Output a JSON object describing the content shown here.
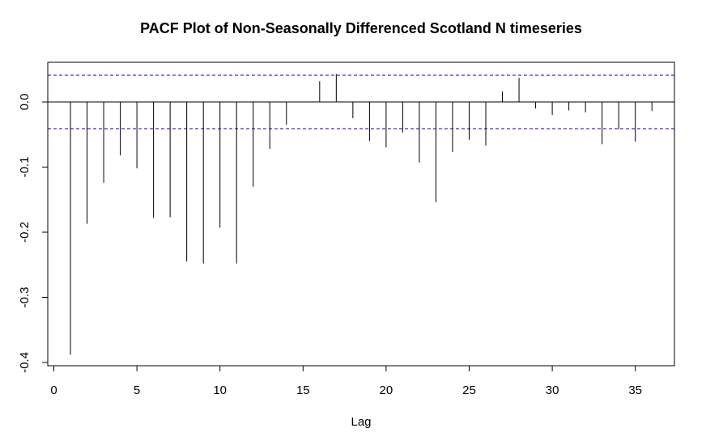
{
  "chart_data": {
    "type": "bar",
    "title": "PACF Plot of Non-Seasonally Differenced Scotland N timeseries",
    "xlabel": "Lag",
    "ylabel": "",
    "xlim": [
      0,
      37
    ],
    "ylim": [
      -0.4,
      0.05
    ],
    "x_ticks": [
      0,
      5,
      10,
      15,
      20,
      25,
      30,
      35
    ],
    "y_ticks": [
      0.0,
      -0.1,
      -0.2,
      -0.3,
      -0.4
    ],
    "y_tick_labels": [
      "0.0",
      "-0.1",
      "-0.2",
      "-0.3",
      "-0.4"
    ],
    "confidence_bound": 0.041,
    "bound_color": "#0000cd",
    "series": [
      {
        "x": [
          1,
          2,
          3,
          4,
          5,
          6,
          7,
          8,
          9,
          10,
          11,
          12,
          13,
          14,
          15,
          16,
          17,
          18,
          19,
          20,
          21,
          22,
          23,
          24,
          25,
          26,
          27,
          28,
          29,
          30,
          31,
          32,
          33,
          34,
          35,
          36
        ],
        "values": [
          -0.388,
          -0.187,
          -0.124,
          -0.082,
          -0.102,
          -0.178,
          -0.177,
          -0.245,
          -0.248,
          -0.193,
          -0.248,
          -0.13,
          -0.072,
          -0.035,
          0.0,
          0.032,
          0.043,
          -0.025,
          -0.06,
          -0.07,
          -0.047,
          -0.093,
          -0.154,
          -0.077,
          -0.058,
          -0.067,
          0.016,
          0.037,
          -0.01,
          -0.02,
          -0.013,
          -0.016,
          -0.065,
          -0.042,
          -0.061,
          -0.014
        ]
      }
    ]
  }
}
